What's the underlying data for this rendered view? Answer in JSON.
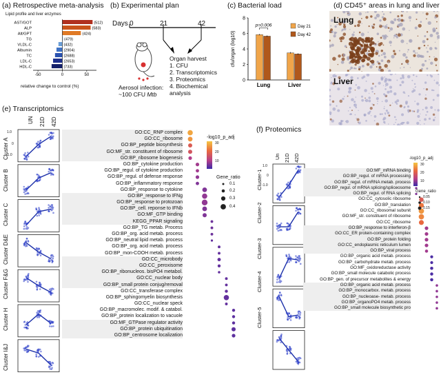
{
  "panel_a": {
    "title": "(a) Retrospective meta-analysis",
    "subtitle": "Lipid profile and liver enzymes",
    "xlabel": "relative change to control (%)",
    "chart_data": {
      "type": "bar",
      "categories": [
        "AST/GOT",
        "ALP",
        "Alt/GPT",
        "TG",
        "VLDL-C",
        "Albumin",
        "TC",
        "LDL-C",
        "HDL-C"
      ],
      "values": [
        62,
        58,
        38,
        1,
        -8,
        -12,
        -15,
        -19,
        -22
      ],
      "labels": [
        "(512)",
        "(583)",
        "(424)",
        "(479)",
        "(432)",
        "(2904)",
        "(2688)",
        "(2653)",
        "(733)"
      ],
      "colors": [
        "#b0301f",
        "#c9541c",
        "#e07a26",
        "#b9cde6",
        "#6c9fd6",
        "#3f72c4",
        "#2a52b0",
        "#1d2f8c",
        "#14206a"
      ],
      "xticks": [
        -50,
        0,
        50
      ],
      "xlim": [
        -60,
        70
      ]
    }
  },
  "panel_b": {
    "title": "(b) Experimental plan",
    "days_label": "Days",
    "day_ticks": [
      "0",
      "21",
      "42"
    ],
    "harvest_title": "Organ harvest",
    "harvest_items": [
      "1. CFU",
      "2. Transcriptomics",
      "3. Proteomics",
      "4. Biochemical",
      "analysis"
    ],
    "aerosol_line1": "Aerosol infection:",
    "aerosol_line2": "~100 CFU ",
    "aerosol_italic": "Mtb"
  },
  "panel_c": {
    "title": "(c) Bacterial load",
    "pvalue": "p=0.006",
    "chart_data": {
      "type": "bar",
      "categories": [
        "Lung",
        "Liver"
      ],
      "series": [
        {
          "name": "Day 21",
          "values": [
            5.85,
            3.5
          ],
          "color": "#f0a54a"
        },
        {
          "name": "Day 42",
          "values": [
            5.65,
            3.35
          ],
          "color": "#b0581b"
        }
      ],
      "errors": [
        [
          0.08,
          0.1
        ],
        [
          0.1,
          0.1
        ]
      ],
      "ylabel": "cfu/organ (log10)",
      "ylim": [
        0,
        8
      ],
      "yticks": [
        0,
        2,
        4,
        6,
        8
      ]
    }
  },
  "panel_d": {
    "title": "(d) CD45⁺ areas in lung and liver",
    "lung_label": "Lung",
    "liver_label": "Liver"
  },
  "panel_e": {
    "title": "(e) Transcriptomics",
    "col_labels": [
      "UN",
      "21D",
      "42D"
    ],
    "clusters": [
      "Cluster A",
      "Cluster B",
      "Cluster C",
      "Cluster D&E",
      "Cluster F&G",
      "Cluster H",
      "Cluster I&J"
    ],
    "axis_ticks": [
      "1.0",
      "0",
      "-1.0"
    ],
    "terms": [
      "GO:CC_RNP complex",
      "GO:CC_ribosome",
      "GO:BP_peptide biosynthesis",
      "GO:MF_str. constituent of ribosome",
      "GO:BP_ribosome biogenesis",
      "GO:BP_cytokine production",
      "GO:BP_regul. of cytokine production",
      "GO:BP_regul. of defense response",
      "GO:BP_inflammatory response",
      "GO:BP_response to cytokine",
      "GO:BP_response to IFNg",
      "GO:BP_response to protozoan",
      "GO:BP_cell. reponse to IFNb",
      "GO:MF_GTP binding",
      "KEGG_PPAR signaling",
      "GO:BP_TG metab. Process",
      "GO:BP_org. acid metab. process",
      "GO:BP_neutral lipid metab. process",
      "GO:BP_org. acid metab. process",
      "GO:BP_mon-COOH metab. process",
      "GO:CC_microbody",
      "GO:CC_peroxisome",
      "GO:BP_ribonucleos. bisPO4 metabol.",
      "GO:CC_nuclear body",
      "GO:BP_small protein conjug/removal",
      "GO:CC_transferase complex",
      "GO:BP_sphingomyelin biosynthesis",
      "GO:CC_nuclear speck",
      "GO:BP_macromolec. modif. & catabol.",
      "GO:BP_protein localization to vacuole",
      "GO:MF_GTPase regulator activity",
      "GO:BP_protein ubiquitination",
      "GO:BP_centrosome localization"
    ],
    "legend_title": "-log10_p_adj",
    "legend_ticks": [
      "30",
      "20",
      "10"
    ],
    "size_title": "Gene_ratio",
    "size_labels": [
      "0.1",
      "0.2",
      "0.3",
      "0.4"
    ],
    "dots": [
      {
        "x": 0,
        "v": 0.9,
        "s": 0.35
      },
      {
        "x": 0,
        "v": 0.85,
        "s": 0.3
      },
      {
        "x": 0,
        "v": 0.6,
        "s": 0.25
      },
      {
        "x": 0,
        "v": 0.55,
        "s": 0.25
      },
      {
        "x": 0,
        "v": 0.35,
        "s": 0.2
      },
      {
        "x": 1,
        "v": 0.3,
        "s": 0.2
      },
      {
        "x": 1,
        "v": 0.3,
        "s": 0.18
      },
      {
        "x": 1,
        "v": 0.25,
        "s": 0.2
      },
      {
        "x": 1,
        "v": 0.2,
        "s": 0.18
      },
      {
        "x": 2,
        "v": 0.2,
        "s": 0.3
      },
      {
        "x": 2,
        "v": 0.25,
        "s": 0.35
      },
      {
        "x": 2,
        "v": 0.25,
        "s": 0.4
      },
      {
        "x": 2,
        "v": 0.2,
        "s": 0.3
      },
      {
        "x": 2,
        "v": 0.2,
        "s": 0.25
      },
      {
        "x": 3,
        "v": 0.15,
        "s": 0.12
      },
      {
        "x": 3,
        "v": 0.15,
        "s": 0.12
      },
      {
        "x": 3,
        "v": 0.15,
        "s": 0.12
      },
      {
        "x": 3,
        "v": 0.12,
        "s": 0.08
      },
      {
        "x": 4,
        "v": 0.12,
        "s": 0.12
      },
      {
        "x": 4,
        "v": 0.12,
        "s": 0.12
      },
      {
        "x": 4,
        "v": 0.12,
        "s": 0.18
      },
      {
        "x": 4,
        "v": 0.12,
        "s": 0.15
      },
      {
        "x": 4,
        "v": 0.12,
        "s": 0.1
      },
      {
        "x": 5,
        "v": 0.12,
        "s": 0.12
      },
      {
        "x": 5,
        "v": 0.12,
        "s": 0.12
      },
      {
        "x": 5,
        "v": 0.12,
        "s": 0.15
      },
      {
        "x": 5,
        "v": 0.12,
        "s": 0.35
      },
      {
        "x": 5,
        "v": 0.12,
        "s": 0.12
      },
      {
        "x": 6,
        "v": 0.1,
        "s": 0.15
      },
      {
        "x": 6,
        "v": 0.1,
        "s": 0.15
      },
      {
        "x": 6,
        "v": 0.1,
        "s": 0.15
      },
      {
        "x": 6,
        "v": 0.1,
        "s": 0.25
      },
      {
        "x": 6,
        "v": 0.1,
        "s": 0.2
      }
    ]
  },
  "panel_f": {
    "title": "(f) Proteomics",
    "col_labels": [
      "Un",
      "21D",
      "42D"
    ],
    "clusters": [
      "Cluster-1",
      "Cluster-2",
      "Cluster-3",
      "Cluster-4",
      "Cluster-5"
    ],
    "axis_ticks": [
      "1.0",
      "0",
      "-1.0"
    ],
    "terms": [
      "GO:MF_mRNA binding",
      "GO:BP_regul. of mRNA processing",
      "GO:BP_regul. of mRNA metab. process",
      "GO:BP_regul. of mRNA splicing/spliceosome",
      "GO:BP_regul. of RNA splicing",
      "GO:CC_cytosolic ribosome",
      "GO:BP_translation",
      "GO:CC_ribosomal subunit",
      "GO:MF_str. constituent of ribosome",
      "GO:CC_ribosome",
      "GO:BP_response to interferon-β",
      "GO:CC_ER protein-containing complex",
      "GO:BP_protein folding",
      "GO:CC_endoplasmic reticulum lumen",
      "GO:BP_viral process",
      "GO:BP_organic acid metab. process",
      "GO:BP_carbohydrate metab. process",
      "GO:MF_oxidoreductase activity",
      "GO:BP_small molecule catabolic process",
      "GO:BP_gen. of precursor metabolites & energy",
      "GO:BP_organic acid metab. process",
      "GO:BP_monocarbox. metab. process",
      "GO:BP_nucleoase- metab. process",
      "GO:BP_organoPO4 metab. process",
      "GO:BP_small molecule biosynthetic pro"
    ],
    "legend_title": "-log10_p_adj",
    "legend_ticks": [
      "30",
      "20",
      "10"
    ],
    "size_title": "Gene_ratio",
    "size_labels": [
      "0.05",
      "0.10",
      "0.15"
    ],
    "dots": [
      {
        "x": 0,
        "v": 0.2,
        "s": 0.04
      },
      {
        "x": 0,
        "v": 0.2,
        "s": 0.04
      },
      {
        "x": 0,
        "v": 0.2,
        "s": 0.04
      },
      {
        "x": 0,
        "v": 0.2,
        "s": 0.04
      },
      {
        "x": 0,
        "v": 0.2,
        "s": 0.04
      },
      {
        "x": 1,
        "v": 0.6,
        "s": 0.14
      },
      {
        "x": 1,
        "v": 0.75,
        "s": 0.16
      },
      {
        "x": 1,
        "v": 0.85,
        "s": 0.18
      },
      {
        "x": 1,
        "v": 0.8,
        "s": 0.18
      },
      {
        "x": 1,
        "v": 0.7,
        "s": 0.16
      },
      {
        "x": 2,
        "v": 0.3,
        "s": 0.1
      },
      {
        "x": 2,
        "v": 0.3,
        "s": 0.1
      },
      {
        "x": 2,
        "v": 0.3,
        "s": 0.1
      },
      {
        "x": 2,
        "v": 0.3,
        "s": 0.1
      },
      {
        "x": 2,
        "v": 0.3,
        "s": 0.08
      },
      {
        "x": 3,
        "v": 0.05,
        "s": 0.07
      },
      {
        "x": 3,
        "v": 0.05,
        "s": 0.07
      },
      {
        "x": 3,
        "v": 0.05,
        "s": 0.08
      },
      {
        "x": 3,
        "v": 0.05,
        "s": 0.08
      },
      {
        "x": 3,
        "v": 0.05,
        "s": 0.08
      },
      {
        "x": 4,
        "v": 0.25,
        "s": 0.05
      },
      {
        "x": 4,
        "v": 0.25,
        "s": 0.05
      },
      {
        "x": 4,
        "v": 0.25,
        "s": 0.05
      },
      {
        "x": 4,
        "v": 0.25,
        "s": 0.05
      },
      {
        "x": 4,
        "v": 0.25,
        "s": 0.05
      }
    ]
  }
}
